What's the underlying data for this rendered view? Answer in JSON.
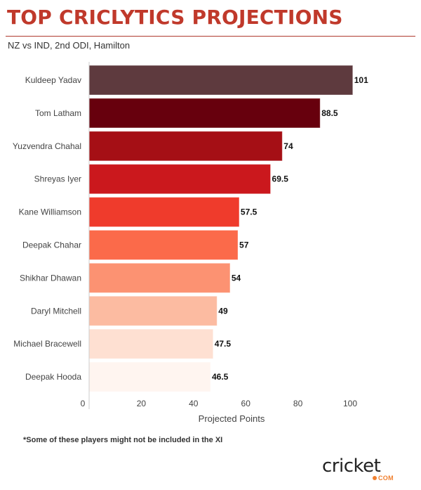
{
  "header": {
    "title": "TOP CRICLYTICS PROJECTIONS",
    "subtitle": "NZ vs IND, 2nd ODI, Hamilton"
  },
  "footnote": "*Some of these players might not be included in the XI",
  "logo": {
    "word": "cricket",
    "suffix": "COM",
    "accent_color": "#f08030"
  },
  "chart_data": {
    "type": "bar",
    "orientation": "horizontal",
    "title": "TOP CRICLYTICS PROJECTIONS",
    "subtitle": "NZ vs IND, 2nd ODI, Hamilton",
    "xlabel": "Projected Points",
    "ylabel": "",
    "xlim": [
      0,
      110
    ],
    "xticks": [
      0,
      20,
      40,
      60,
      80,
      100
    ],
    "xtick_labels": [
      "0",
      "20",
      "40",
      "60",
      "80",
      "100"
    ],
    "grid": false,
    "categories": [
      "Kuldeep Yadav",
      "Tom Latham",
      "Yuzvendra Chahal",
      "Shreyas Iyer",
      "Kane Williamson",
      "Deepak Chahar",
      "Shikhar Dhawan",
      "Daryl Mitchell",
      "Michael Bracewell",
      "Deepak Hooda"
    ],
    "values": [
      101,
      88.5,
      74,
      69.5,
      57.5,
      57,
      54,
      49,
      47.5,
      46.5
    ],
    "value_labels": [
      "101",
      "88.5",
      "74",
      "69.5",
      "57.5",
      "57",
      "54",
      "49",
      "47.5",
      "46.5"
    ],
    "colors": [
      "#5e3a3e",
      "#67000d",
      "#a50f15",
      "#cb181d",
      "#ef3b2c",
      "#fb6a4a",
      "#fc9272",
      "#fcbba1",
      "#fee0d2",
      "#fff5f0"
    ]
  }
}
